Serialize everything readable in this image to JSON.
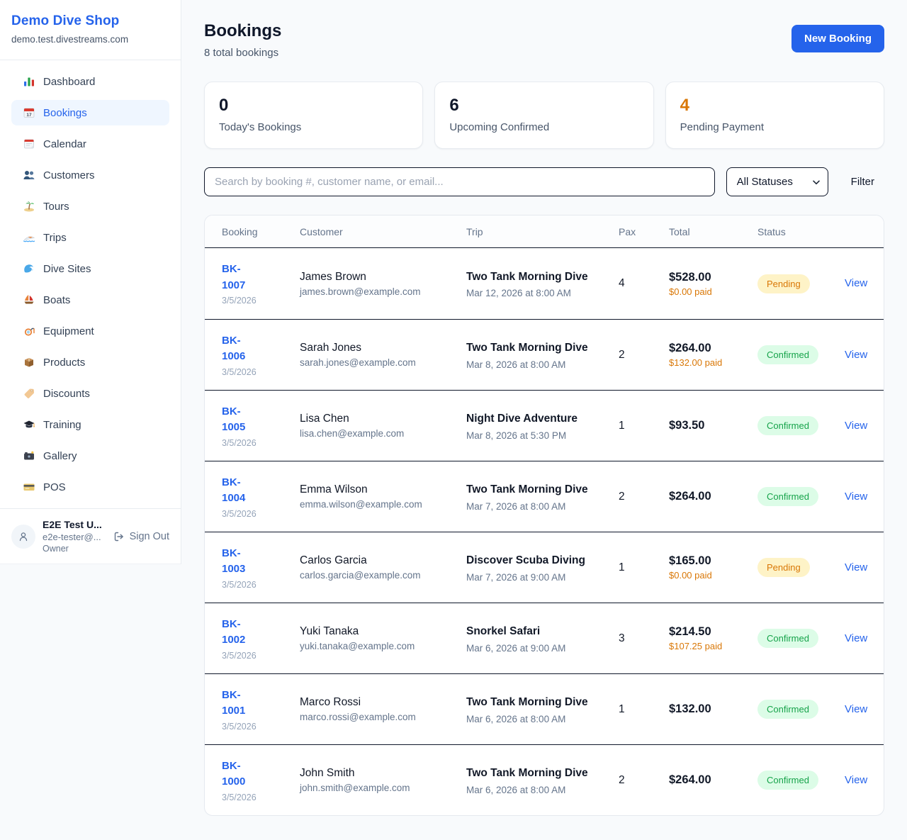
{
  "sidebar": {
    "shop_name": "Demo Dive Shop",
    "shop_domain": "demo.test.divestreams.com",
    "items": [
      {
        "label": "Dashboard",
        "icon": "bar-chart",
        "active": false
      },
      {
        "label": "Bookings",
        "icon": "calendar-17",
        "active": true
      },
      {
        "label": "Calendar",
        "icon": "tear-calendar",
        "active": false
      },
      {
        "label": "Customers",
        "icon": "people",
        "active": false
      },
      {
        "label": "Tours",
        "icon": "island",
        "active": false
      },
      {
        "label": "Trips",
        "icon": "speedboat",
        "active": false
      },
      {
        "label": "Dive Sites",
        "icon": "wave",
        "active": false
      },
      {
        "label": "Boats",
        "icon": "sailboat",
        "active": false
      },
      {
        "label": "Equipment",
        "icon": "dive-mask",
        "active": false
      },
      {
        "label": "Products",
        "icon": "package",
        "active": false
      },
      {
        "label": "Discounts",
        "icon": "tag",
        "active": false
      },
      {
        "label": "Training",
        "icon": "grad-cap",
        "active": false
      },
      {
        "label": "Gallery",
        "icon": "camera",
        "active": false
      },
      {
        "label": "POS",
        "icon": "credit-card",
        "active": false
      }
    ],
    "user": {
      "name": "E2E Test U...",
      "email": "e2e-tester@...",
      "role": "Owner",
      "sign_out_label": "Sign Out"
    }
  },
  "header": {
    "title": "Bookings",
    "subtitle": "8 total bookings",
    "new_booking_label": "New Booking"
  },
  "stats": [
    {
      "value": "0",
      "label": "Today's Bookings",
      "color": "#0f172a"
    },
    {
      "value": "6",
      "label": "Upcoming Confirmed",
      "color": "#0f172a"
    },
    {
      "value": "4",
      "label": "Pending Payment",
      "color": "#d97706"
    }
  ],
  "filters": {
    "search_placeholder": "Search by booking #, customer name, or email...",
    "status_selected": "All Statuses",
    "filter_label": "Filter"
  },
  "table": {
    "columns": [
      "Booking",
      "Customer",
      "Trip",
      "Pax",
      "Total",
      "Status"
    ],
    "view_label": "View",
    "rows": [
      {
        "id": "BK-1007",
        "date": "3/5/2026",
        "customer": "James Brown",
        "email": "james.brown@example.com",
        "trip": "Two Tank Morning Dive",
        "trip_time": "Mar 12, 2026 at 8:00 AM",
        "pax": "4",
        "total": "$528.00",
        "paid": "$0.00 paid",
        "status": "Pending"
      },
      {
        "id": "BK-1006",
        "date": "3/5/2026",
        "customer": "Sarah Jones",
        "email": "sarah.jones@example.com",
        "trip": "Two Tank Morning Dive",
        "trip_time": "Mar 8, 2026 at 8:00 AM",
        "pax": "2",
        "total": "$264.00",
        "paid": "$132.00 paid",
        "status": "Confirmed"
      },
      {
        "id": "BK-1005",
        "date": "3/5/2026",
        "customer": "Lisa Chen",
        "email": "lisa.chen@example.com",
        "trip": "Night Dive Adventure",
        "trip_time": "Mar 8, 2026 at 5:30 PM",
        "pax": "1",
        "total": "$93.50",
        "paid": null,
        "status": "Confirmed"
      },
      {
        "id": "BK-1004",
        "date": "3/5/2026",
        "customer": "Emma Wilson",
        "email": "emma.wilson@example.com",
        "trip": "Two Tank Morning Dive",
        "trip_time": "Mar 7, 2026 at 8:00 AM",
        "pax": "2",
        "total": "$264.00",
        "paid": null,
        "status": "Confirmed"
      },
      {
        "id": "BK-1003",
        "date": "3/5/2026",
        "customer": "Carlos Garcia",
        "email": "carlos.garcia@example.com",
        "trip": "Discover Scuba Diving",
        "trip_time": "Mar 7, 2026 at 9:00 AM",
        "pax": "1",
        "total": "$165.00",
        "paid": "$0.00 paid",
        "status": "Pending"
      },
      {
        "id": "BK-1002",
        "date": "3/5/2026",
        "customer": "Yuki Tanaka",
        "email": "yuki.tanaka@example.com",
        "trip": "Snorkel Safari",
        "trip_time": "Mar 6, 2026 at 9:00 AM",
        "pax": "3",
        "total": "$214.50",
        "paid": "$107.25 paid",
        "status": "Confirmed"
      },
      {
        "id": "BK-1001",
        "date": "3/5/2026",
        "customer": "Marco Rossi",
        "email": "marco.rossi@example.com",
        "trip": "Two Tank Morning Dive",
        "trip_time": "Mar 6, 2026 at 8:00 AM",
        "pax": "1",
        "total": "$132.00",
        "paid": null,
        "status": "Confirmed"
      },
      {
        "id": "BK-1000",
        "date": "3/5/2026",
        "customer": "John Smith",
        "email": "john.smith@example.com",
        "trip": "Two Tank Morning Dive",
        "trip_time": "Mar 6, 2026 at 8:00 AM",
        "pax": "2",
        "total": "$264.00",
        "paid": null,
        "status": "Confirmed"
      }
    ]
  },
  "colors": {
    "accent": "#2563eb",
    "page_bg": "#f8fafc",
    "paid_text": "#d97706",
    "row_border": "#0f172a",
    "status": {
      "Pending": {
        "text": "#d97706",
        "bg": "#fef3c7"
      },
      "Confirmed": {
        "text": "#16a34a",
        "bg": "#dcfce7"
      }
    }
  }
}
